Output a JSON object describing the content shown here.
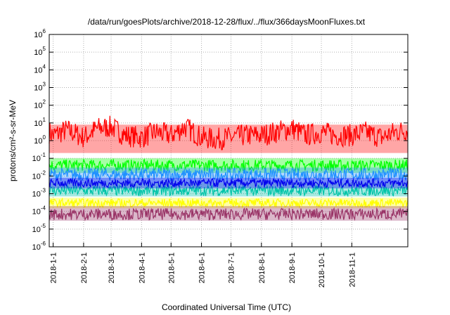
{
  "chart_data": {
    "type": "line",
    "title": "/data/run/goesPlots/archive/2018-12-28/flux/../flux/366daysMoonFluxes.txt",
    "xlabel": "Coordinated Universal Time (UTC)",
    "ylabel": "protons/cm²-s-sr-MeV",
    "yscale": "log",
    "ylim": [
      1e-06,
      1000000.0
    ],
    "xlim": [
      "2017-12-28",
      "2018-12-28"
    ],
    "grid": true,
    "y_ticks": [
      {
        "base": "10",
        "exp": "-6"
      },
      {
        "base": "10",
        "exp": "-5"
      },
      {
        "base": "10",
        "exp": "-4"
      },
      {
        "base": "10",
        "exp": "-3"
      },
      {
        "base": "10",
        "exp": "-2"
      },
      {
        "base": "10",
        "exp": "-1"
      },
      {
        "base": "10",
        "exp": "0"
      },
      {
        "base": "10",
        "exp": "1"
      },
      {
        "base": "10",
        "exp": "2"
      },
      {
        "base": "10",
        "exp": "3"
      },
      {
        "base": "10",
        "exp": "4"
      },
      {
        "base": "10",
        "exp": "5"
      },
      {
        "base": "10",
        "exp": "6"
      }
    ],
    "x_ticks": [
      "2018-1-1",
      "2018-2-1",
      "2018-3-1",
      "2018-4-1",
      "2018-5-1",
      "2018-6-1",
      "2018-7-1",
      "2018-8-1",
      "2018-9-1",
      "2018-10-1",
      "2018-11-1"
    ],
    "series": [
      {
        "color": "#ff0000",
        "x": [
          "2017-12-28",
          "2018-01-01",
          "2018-01-15",
          "2018-02-01",
          "2018-02-15",
          "2018-03-01",
          "2018-03-15",
          "2018-04-01",
          "2018-04-15",
          "2018-05-01",
          "2018-05-15",
          "2018-06-01",
          "2018-06-15",
          "2018-07-01",
          "2018-07-15",
          "2018-08-01",
          "2018-08-15",
          "2018-09-01",
          "2018-09-15",
          "2018-10-01",
          "2018-10-15",
          "2018-11-01",
          "2018-11-15",
          "2018-12-01",
          "2018-12-15",
          "2018-12-28"
        ],
        "values": [
          3,
          2,
          4,
          1.5,
          5,
          6,
          2,
          1.5,
          3,
          2,
          6,
          1.5,
          1.2,
          1.5,
          2,
          2,
          3,
          5,
          2,
          3,
          2,
          2,
          3,
          1.5,
          3,
          4
        ],
        "lo": 0.2,
        "hi": 8
      },
      {
        "color": "#00ff00",
        "x": [
          "2017-12-28",
          "2018-12-28"
        ],
        "values": [
          0.04,
          0.04
        ],
        "lo": 0.015,
        "hi": 0.1
      },
      {
        "color": "#1e90ff",
        "x": [
          "2017-12-28",
          "2018-12-28"
        ],
        "values": [
          0.012,
          0.012
        ],
        "lo": 0.004,
        "hi": 0.03
      },
      {
        "color": "#00c4a8",
        "x": [
          "2017-12-28",
          "2018-12-28"
        ],
        "values": [
          0.0015,
          0.0015
        ],
        "lo": 0.0007,
        "hi": 0.004
      },
      {
        "color": "#0000ee",
        "x": [
          "2017-12-28",
          "2018-12-28"
        ],
        "values": [
          0.004,
          0.004
        ],
        "lo": 0.002,
        "hi": 0.008
      },
      {
        "color": "#ffff00",
        "x": [
          "2017-12-28",
          "2018-12-28"
        ],
        "values": [
          0.0003,
          0.0003
        ],
        "lo": 0.00015,
        "hi": 0.0006
      },
      {
        "color": "#993366",
        "x": [
          "2017-12-28",
          "2018-12-28"
        ],
        "values": [
          7e-05,
          7e-05
        ],
        "lo": 3e-05,
        "hi": 0.0002
      }
    ]
  }
}
